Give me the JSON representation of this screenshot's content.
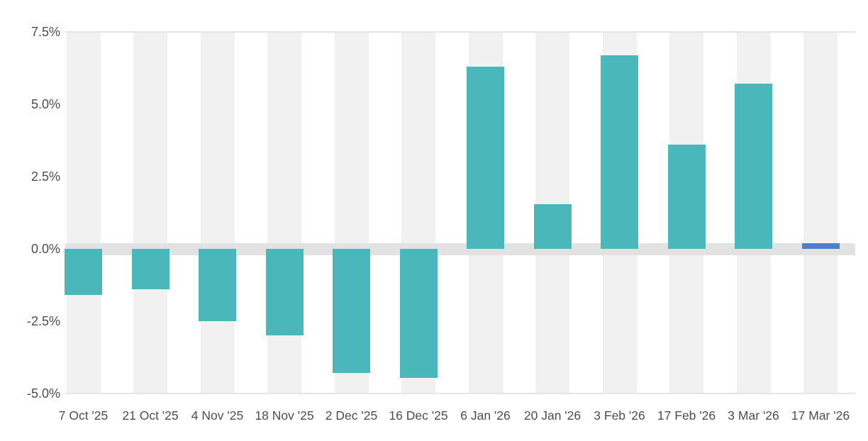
{
  "chart_data": {
    "type": "bar",
    "title": "",
    "xlabel": "",
    "ylabel": "",
    "categories": [
      "7 Oct '25",
      "21 Oct '25",
      "4 Nov '25",
      "18 Nov '25",
      "2 Dec '25",
      "16 Dec '25",
      "6 Jan '26",
      "20 Jan '26",
      "3 Feb '26",
      "17 Feb '26",
      "3 Mar '26",
      "17 Mar '26"
    ],
    "values": [
      -1.6,
      -1.4,
      -2.5,
      -3.0,
      -4.3,
      -4.45,
      6.3,
      1.55,
      6.7,
      3.6,
      5.7,
      0.2
    ],
    "unit": "%",
    "point_colors": [
      "#4ab7ba",
      "#4ab7ba",
      "#4ab7ba",
      "#4ab7ba",
      "#4ab7ba",
      "#4ab7ba",
      "#4ab7ba",
      "#4ab7ba",
      "#4ab7ba",
      "#4ab7ba",
      "#4ab7ba",
      "#4e80c8"
    ],
    "ylim": [
      -5.0,
      7.5
    ],
    "yticks": [
      {
        "label": "7.5%",
        "value": 7.5
      },
      {
        "label": "5.0%",
        "value": 5.0
      },
      {
        "label": "2.5%",
        "value": 2.5
      },
      {
        "label": "0.0%",
        "value": 0.0
      },
      {
        "label": "-2.5%",
        "value": -2.5
      },
      {
        "label": "-5.0%",
        "value": -5.0
      }
    ],
    "legend": "none",
    "grid": "top and bottom border lines, thick zero band, per-category vertical background bands"
  },
  "colors": {
    "bar_teal": "#4ab7ba",
    "bar_blue": "#4e80c8",
    "column_band": "#f1f1f1",
    "zero_band": "#e2e2e2",
    "gridline": "#e4e4e4",
    "axis_text": "#4d4d4d",
    "background": "#ffffff"
  }
}
